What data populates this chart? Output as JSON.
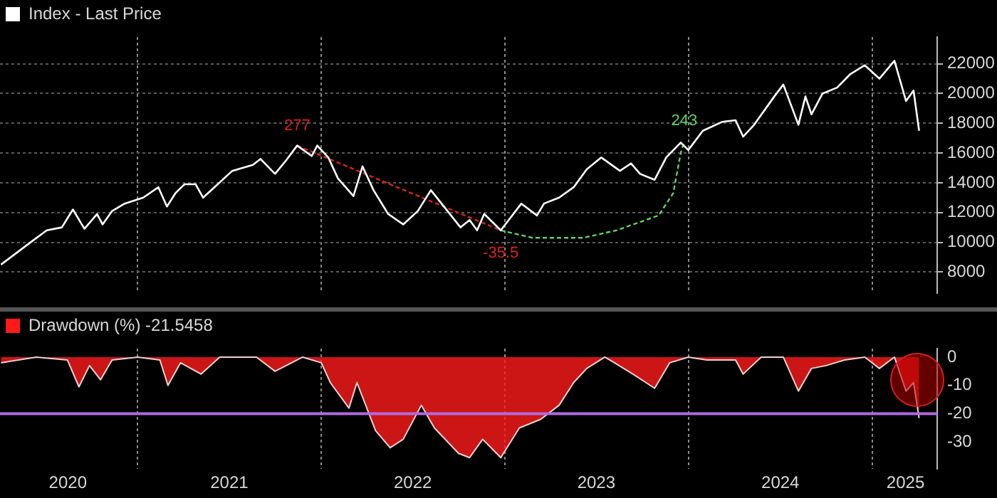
{
  "chart_data": [
    {
      "type": "line",
      "xlim": [
        "2020-04-02",
        "2025-05-10"
      ],
      "xticks": [
        {
          "value": "2021-01-01",
          "label": null
        },
        {
          "value": "2022-01-01",
          "label": null
        },
        {
          "value": "2023-01-01",
          "label": null
        },
        {
          "value": "2024-01-01",
          "label": null
        },
        {
          "value": "2025-01-01",
          "label": null
        }
      ],
      "ylim": [
        6600,
        23800
      ],
      "yticks": [
        8000,
        10000,
        12000,
        14000,
        16000,
        18000,
        20000,
        22000
      ],
      "grid": true,
      "legend": "top left",
      "tick_labels": "y",
      "marker": "none",
      "series": [
        {
          "name": "Index - Last Price",
          "color": "#ffffff",
          "x": [
            "2020-04-04",
            "2020-05-29",
            "2020-07-04",
            "2020-08-03",
            "2020-08-25",
            "2020-09-17",
            "2020-10-12",
            "2020-10-23",
            "2020-11-11",
            "2020-12-06",
            "2021-01-12",
            "2021-02-11",
            "2021-02-28",
            "2021-03-17",
            "2021-04-04",
            "2021-04-26",
            "2021-05-11",
            "2021-06-09",
            "2021-07-08",
            "2021-08-18",
            "2021-09-02",
            "2021-10-01",
            "2021-10-23",
            "2021-11-14",
            "2021-12-13",
            "2021-12-24",
            "2022-01-15",
            "2022-02-03",
            "2022-03-06",
            "2022-03-24",
            "2022-04-15",
            "2022-05-14",
            "2022-06-13",
            "2022-07-12",
            "2022-08-07",
            "2022-09-02",
            "2022-10-05",
            "2022-10-23",
            "2022-11-07",
            "2022-11-21",
            "2022-12-24",
            "2023-02-03",
            "2023-03-06",
            "2023-03-20",
            "2023-04-19",
            "2023-05-18",
            "2023-06-13",
            "2023-07-12",
            "2023-08-18",
            "2023-09-09",
            "2023-09-27",
            "2023-10-26",
            "2023-11-18",
            "2023-12-17",
            "2024-01-01",
            "2024-01-30",
            "2024-03-09",
            "2024-04-04",
            "2024-04-19",
            "2024-05-11",
            "2024-06-20",
            "2024-07-08",
            "2024-08-07",
            "2024-08-21",
            "2024-09-02",
            "2024-09-24",
            "2024-10-23",
            "2024-11-18",
            "2024-12-17",
            "2025-01-15",
            "2025-02-14",
            "2025-03-09",
            "2025-03-24",
            "2025-04-04"
          ],
          "values": [
            8500,
            9900,
            10800,
            11000,
            12200,
            10900,
            11900,
            11200,
            12100,
            12600,
            13000,
            13700,
            12400,
            13300,
            13900,
            13900,
            13000,
            13900,
            14800,
            15200,
            15600,
            14600,
            15500,
            16500,
            15800,
            16500,
            15700,
            14300,
            13100,
            15100,
            13500,
            11900,
            11200,
            12100,
            13500,
            12400,
            11000,
            11500,
            10800,
            11900,
            10800,
            12600,
            11800,
            12600,
            13000,
            13700,
            14900,
            15700,
            14800,
            15300,
            14600,
            14200,
            15700,
            16700,
            16200,
            17500,
            18100,
            18200,
            17100,
            17900,
            19800,
            20600,
            17900,
            19800,
            18600,
            20000,
            20400,
            21300,
            21900,
            21000,
            22200,
            19500,
            20200,
            17500
          ]
        },
        {
          "color": "#e02020",
          "line_style": "dashed",
          "x": [
            "2021-11-14",
            "2022-12-24"
          ],
          "values": [
            16500,
            10800
          ]
        },
        {
          "color": "#5fd35f",
          "line_style": "dashed",
          "x": [
            "2022-12-24",
            "2023-02-25",
            "2023-06-06",
            "2023-08-11",
            "2023-11-03",
            "2023-12-02",
            "2023-12-17",
            "2023-12-24"
          ],
          "values": [
            10800,
            10300,
            10300,
            10800,
            11800,
            13300,
            16000,
            16800
          ]
        }
      ],
      "annotations": [
        {
          "text": "277",
          "x": "2021-11-14",
          "y": 16500
        },
        {
          "text": "-35.5",
          "x": "2022-12-24",
          "y": 10800
        },
        {
          "text": "243",
          "x": "2023-12-24",
          "y": 16800
        }
      ]
    },
    {
      "type": "area",
      "xlim": [
        "2020-04-02",
        "2025-05-10"
      ],
      "ylim": [
        -39.5,
        3
      ],
      "yticks": [
        0,
        -10,
        -20,
        -30
      ],
      "grid": "x",
      "legend": "top left",
      "marker": "none",
      "xticks": [
        {
          "value": "2020-08-15",
          "label": "2020"
        },
        {
          "value": "2021-01-01",
          "label": null
        },
        {
          "value": "2021-07-02",
          "label": "2021"
        },
        {
          "value": "2022-01-01",
          "label": null
        },
        {
          "value": "2022-07-02",
          "label": "2022"
        },
        {
          "value": "2023-01-01",
          "label": null
        },
        {
          "value": "2023-07-02",
          "label": "2023"
        },
        {
          "value": "2024-01-01",
          "label": null
        },
        {
          "value": "2024-07-02",
          "label": "2024"
        },
        {
          "value": "2025-01-01",
          "label": null
        },
        {
          "value": "2025-03-08",
          "label": "2025"
        }
      ],
      "ref_lines": [
        {
          "axis": "y",
          "value": -20,
          "color": "#b06be0"
        }
      ],
      "series": [
        {
          "name": "Drawdown (%) -21.5458",
          "color": "#ff1a1a",
          "x": [
            "2020-04-04",
            "2020-06-13",
            "2020-08-14",
            "2020-09-06",
            "2020-09-27",
            "2020-10-19",
            "2020-11-11",
            "2021-01-01",
            "2021-02-14",
            "2021-03-02",
            "2021-03-27",
            "2021-05-07",
            "2021-06-13",
            "2021-08-25",
            "2021-10-01",
            "2021-11-25",
            "2022-01-01",
            "2022-01-19",
            "2022-02-25",
            "2022-03-13",
            "2022-04-19",
            "2022-05-18",
            "2022-06-13",
            "2022-07-19",
            "2022-08-14",
            "2022-10-01",
            "2022-10-23",
            "2022-11-18",
            "2022-12-24",
            "2023-01-30",
            "2023-03-13",
            "2023-04-19",
            "2023-05-18",
            "2023-06-13",
            "2023-07-19",
            "2023-08-07",
            "2023-09-13",
            "2023-10-26",
            "2023-11-25",
            "2024-01-01",
            "2024-02-07",
            "2024-04-04",
            "2024-04-19",
            "2024-05-25",
            "2024-07-08",
            "2024-08-07",
            "2024-09-02",
            "2024-10-01",
            "2024-11-07",
            "2024-12-17",
            "2025-01-15",
            "2025-02-14",
            "2025-03-09",
            "2025-03-24",
            "2025-04-04"
          ],
          "values": [
            -2,
            0,
            -1,
            -10.5,
            -3,
            -8,
            -1,
            0,
            -1,
            -10,
            -2,
            -6,
            0,
            0,
            -5,
            0,
            -2,
            -9,
            -18,
            -9,
            -26,
            -32,
            -29,
            -17,
            -25,
            -34,
            -35.5,
            -29,
            -35.5,
            -25,
            -22,
            -17,
            -9,
            -4,
            0,
            -2,
            -6,
            -11,
            -2,
            0,
            -1,
            -1,
            -6,
            0,
            0,
            -12,
            -4,
            -3,
            -1,
            0,
            -4,
            0,
            -12,
            -9,
            -21.5
          ]
        }
      ]
    }
  ]
}
